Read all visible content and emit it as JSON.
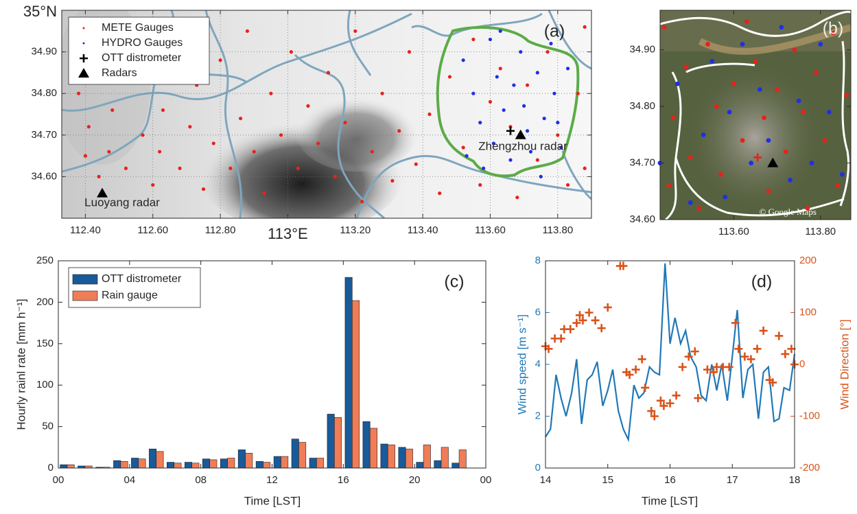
{
  "chart_data": [
    {
      "type": "scatter",
      "label": "(a)",
      "xlim": [
        112.33,
        113.9
      ],
      "ylim": [
        34.5,
        35.0
      ],
      "xticks": [
        {
          "value": 112.4,
          "label": "112.40"
        },
        {
          "value": 112.6,
          "label": "112.60"
        },
        {
          "value": 112.8,
          "label": "112.80"
        },
        {
          "value": 113,
          "label": "113°E"
        },
        {
          "value": 113.2,
          "label": "113.20"
        },
        {
          "value": 113.4,
          "label": "113.40"
        },
        {
          "value": 113.6,
          "label": "113.60"
        },
        {
          "value": 113.8,
          "label": "113.80"
        }
      ],
      "yticks": [
        {
          "value": 34.6,
          "label": "34.60"
        },
        {
          "value": 34.7,
          "label": "34.70"
        },
        {
          "value": 34.8,
          "label": "34.80"
        },
        {
          "value": 34.9,
          "label": "34.90"
        },
        {
          "value": 35,
          "label": "35°N"
        }
      ],
      "grid": true,
      "legend": "upper left",
      "annotations": [
        "Zhengzhou radar",
        "Luoyang radar"
      ],
      "series": [
        {
          "name": "METE Gauges",
          "color": "#e8221b",
          "marker": "dot",
          "x": [
            112.36,
            112.38,
            112.41,
            112.4,
            112.44,
            112.47,
            112.48,
            112.52,
            112.55,
            112.57,
            112.6,
            112.62,
            112.63,
            112.66,
            112.68,
            112.71,
            112.73,
            112.75,
            112.78,
            112.8,
            112.83,
            112.86,
            112.88,
            112.9,
            112.93,
            112.95,
            112.98,
            113.01,
            113.03,
            113.06,
            113.09,
            113.12,
            113.14,
            113.17,
            113.2,
            113.22,
            113.25,
            113.28,
            113.31,
            113.33,
            113.36,
            113.38,
            113.42,
            113.45,
            113.48,
            113.52,
            113.55,
            113.57,
            113.6,
            113.63,
            113.66,
            113.68,
            113.71,
            113.74,
            113.77,
            113.8,
            113.83,
            113.86,
            113.88,
            113.88
          ],
          "y": [
            34.93,
            34.8,
            34.72,
            34.65,
            34.6,
            34.66,
            34.76,
            34.62,
            34.85,
            34.7,
            34.58,
            34.66,
            34.76,
            34.93,
            34.62,
            34.72,
            34.82,
            34.57,
            34.68,
            34.88,
            34.62,
            34.74,
            34.95,
            34.66,
            34.56,
            34.8,
            34.7,
            34.9,
            34.62,
            34.77,
            34.68,
            34.85,
            34.6,
            34.73,
            34.95,
            34.54,
            34.66,
            34.8,
            34.59,
            34.71,
            34.9,
            34.63,
            34.75,
            34.56,
            34.84,
            34.67,
            34.93,
            34.58,
            34.78,
            34.86,
            34.72,
            34.55,
            34.82,
            34.64,
            34.9,
            34.7,
            34.58,
            34.8,
            34.96,
            34.62
          ]
        },
        {
          "name": "HYDRO Gauges",
          "color": "#1f2fe6",
          "marker": "dot",
          "x": [
            113.52,
            113.55,
            113.57,
            113.53,
            113.6,
            113.62,
            113.64,
            113.61,
            113.67,
            113.69,
            113.7,
            113.72,
            113.74,
            113.76,
            113.78,
            113.79,
            113.81,
            113.83,
            113.58,
            113.66,
            113.75,
            113.63,
            113.71,
            113.8
          ],
          "y": [
            34.88,
            34.8,
            34.73,
            34.65,
            34.93,
            34.84,
            34.76,
            34.68,
            34.82,
            34.9,
            34.77,
            34.66,
            34.85,
            34.74,
            34.92,
            34.8,
            34.67,
            34.86,
            34.62,
            34.64,
            34.6,
            34.95,
            34.71,
            34.73
          ]
        },
        {
          "name": "OTT distrometer",
          "color": "#000000",
          "marker": "plus",
          "x": [
            113.66
          ],
          "y": [
            34.71
          ]
        },
        {
          "name": "Radars",
          "color": "#000000",
          "marker": "triangle",
          "x": [
            113.69,
            112.45
          ],
          "y": [
            34.7,
            34.56
          ]
        }
      ]
    },
    {
      "type": "scatter",
      "label": "(b)",
      "credit": "© Google Maps",
      "xlim": [
        113.43,
        113.87
      ],
      "ylim": [
        34.6,
        34.97
      ],
      "xticks": [
        {
          "value": 113.6,
          "label": "113.60"
        },
        {
          "value": 113.8,
          "label": "113.80"
        }
      ],
      "yticks": [
        {
          "value": 34.6,
          "label": "34.60"
        },
        {
          "value": 34.7,
          "label": "34.70"
        },
        {
          "value": 34.8,
          "label": "34.80"
        },
        {
          "value": 34.9,
          "label": "34.90"
        }
      ],
      "series": [
        {
          "color": "#e8221b",
          "marker": "dot",
          "x": [
            113.44,
            113.46,
            113.45,
            113.49,
            113.5,
            113.52,
            113.54,
            113.56,
            113.57,
            113.6,
            113.62,
            113.63,
            113.65,
            113.67,
            113.68,
            113.7,
            113.72,
            113.74,
            113.76,
            113.77,
            113.79,
            113.81,
            113.83,
            113.84,
            113.86
          ],
          "y": [
            34.94,
            34.78,
            34.66,
            34.87,
            34.71,
            34.62,
            34.91,
            34.8,
            34.68,
            34.84,
            34.74,
            34.95,
            34.88,
            34.78,
            34.65,
            34.83,
            34.72,
            34.9,
            34.79,
            34.62,
            34.86,
            34.74,
            34.93,
            34.66,
            34.82
          ]
        },
        {
          "color": "#1f2fe6",
          "marker": "dot",
          "x": [
            113.43,
            113.47,
            113.5,
            113.53,
            113.55,
            113.58,
            113.59,
            113.62,
            113.64,
            113.66,
            113.68,
            113.71,
            113.73,
            113.75,
            113.78,
            113.8,
            113.82,
            113.85
          ],
          "y": [
            34.7,
            34.84,
            34.63,
            34.75,
            34.88,
            34.64,
            34.79,
            34.91,
            34.7,
            34.83,
            34.74,
            34.94,
            34.67,
            34.81,
            34.7,
            34.91,
            34.79,
            34.68
          ]
        },
        {
          "color": "#e8221b",
          "marker": "plus",
          "x": [
            113.655
          ],
          "y": [
            34.71
          ]
        },
        {
          "color": "#000000",
          "marker": "triangle",
          "x": [
            113.69
          ],
          "y": [
            34.7
          ]
        }
      ]
    },
    {
      "type": "bar",
      "label": "(c)",
      "xlabel": "Time [LST]",
      "ylabel": "Hourly rainl rate [mm h⁻¹]",
      "xlim": [
        0,
        24
      ],
      "ylim": [
        0,
        250
      ],
      "xticks": [
        {
          "value": 0,
          "label": "00"
        },
        {
          "value": 4,
          "label": "04"
        },
        {
          "value": 8,
          "label": "08"
        },
        12,
        16,
        20,
        {
          "value": 24,
          "label": "00"
        }
      ],
      "yticks": [
        0,
        50,
        100,
        150,
        200,
        250
      ],
      "legend": "upper left",
      "x": [
        0.5,
        1.5,
        2.5,
        3.5,
        4.5,
        5.5,
        6.5,
        7.5,
        8.5,
        9.5,
        10.5,
        11.5,
        12.5,
        13.5,
        14.5,
        15.5,
        16.5,
        17.5,
        18.5,
        19.5,
        20.5,
        21.5,
        22.5
      ],
      "series": [
        {
          "name": "OTT distrometer",
          "color": "#185a9a",
          "values": [
            4,
            2.5,
            1,
            9,
            12,
            23,
            7,
            7,
            11,
            11,
            22,
            8,
            14,
            35,
            12,
            65,
            230,
            56,
            29,
            25,
            7,
            9,
            6
          ]
        },
        {
          "name": "Rain gauge",
          "color": "#ef7d57",
          "values": [
            4,
            2.5,
            1,
            8,
            11,
            20,
            6,
            6,
            10,
            12,
            18,
            7,
            14,
            31,
            12,
            61,
            202,
            48,
            28,
            23,
            28,
            25,
            22
          ]
        }
      ]
    },
    {
      "type": "line",
      "label": "(d)",
      "xlabel": "Time [LST]",
      "ylabel": "Wind speed [m s⁻¹]",
      "y2label": "Wind Direction [°]",
      "xlim": [
        14,
        18
      ],
      "ylim": [
        0,
        8
      ],
      "y2lim": [
        -200,
        200
      ],
      "xticks": [
        14,
        15,
        16,
        17,
        18
      ],
      "yticks": [
        0,
        2,
        4,
        6,
        8
      ],
      "y2ticks": [
        -200,
        -100,
        0,
        100,
        200
      ],
      "x": [
        14,
        14.08,
        14.17,
        14.25,
        14.33,
        14.42,
        14.5,
        14.58,
        14.67,
        14.75,
        14.83,
        14.92,
        15,
        15.08,
        15.17,
        15.25,
        15.33,
        15.42,
        15.5,
        15.58,
        15.67,
        15.75,
        15.83,
        15.92,
        16,
        16.08,
        16.17,
        16.25,
        16.33,
        16.42,
        16.5,
        16.58,
        16.67,
        16.75,
        16.83,
        16.92,
        17,
        17.08,
        17.17,
        17.25,
        17.33,
        17.42,
        17.5,
        17.58,
        17.67,
        17.75,
        17.83,
        17.92,
        18
      ],
      "series": [
        {
          "color": "#1f78b8",
          "values": [
            1.2,
            1.5,
            3.6,
            2.7,
            2.0,
            2.9,
            4.2,
            1.7,
            3.4,
            3.6,
            4.1,
            2.4,
            3.0,
            3.8,
            2.2,
            1.5,
            1.1,
            3.2,
            2.7,
            2.9,
            3.9,
            3.7,
            3.6,
            7.9,
            4.8,
            5.8,
            4.8,
            5.3,
            4.3,
            3.9,
            2.8,
            2.6,
            4.0,
            3.0,
            4.0,
            2.6,
            4.3,
            6.1,
            2.7,
            3.8,
            4.0,
            1.9,
            3.7,
            3.9,
            1.8,
            1.9,
            3.1,
            3.0,
            4.4
          ]
        },
        {
          "color": "#d95319",
          "marker": "plus",
          "axis": "y2",
          "x": [
            14.0,
            14.05,
            14.15,
            14.25,
            14.3,
            14.4,
            14.5,
            14.55,
            14.6,
            14.7,
            14.8,
            14.9,
            15.0,
            15.2,
            15.25,
            15.3,
            15.35,
            15.45,
            15.55,
            15.6,
            15.7,
            15.75,
            15.85,
            15.9,
            16.0,
            16.1,
            16.2,
            16.3,
            16.4,
            16.45,
            16.6,
            16.7,
            16.75,
            16.85,
            16.95,
            17.05,
            17.1,
            17.2,
            17.3,
            17.4,
            17.5,
            17.6,
            17.65,
            17.75,
            17.85,
            17.95,
            18.0
          ],
          "values": [
            35,
            30,
            50,
            50,
            68,
            68,
            80,
            95,
            85,
            100,
            85,
            70,
            110,
            190,
            190,
            -15,
            -20,
            -10,
            10,
            -45,
            -90,
            -100,
            -70,
            -80,
            -75,
            -60,
            -5,
            15,
            25,
            -65,
            -10,
            -15,
            -5,
            -5,
            -5,
            80,
            30,
            15,
            10,
            30,
            65,
            -30,
            -35,
            55,
            20,
            30,
            0
          ]
        }
      ]
    }
  ]
}
